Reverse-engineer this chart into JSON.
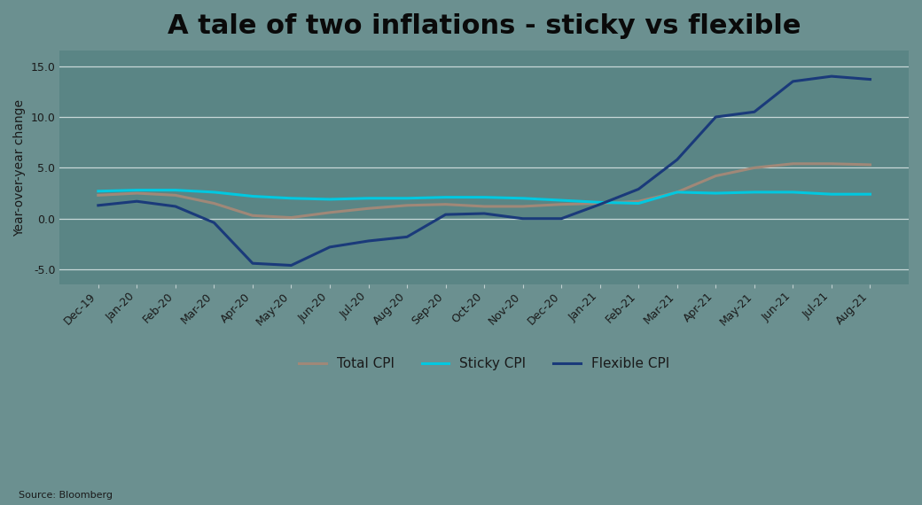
{
  "title": "A tale of two inflations - sticky vs flexible",
  "ylabel": "Year-over-year change",
  "source": "Source: Bloomberg",
  "figure_bg_color": "#6b9090",
  "plot_bg_color": "#5a8585",
  "grid_color": "#c8d8d8",
  "ylim": [
    -6.5,
    16.5
  ],
  "yticks": [
    -5.0,
    0.0,
    5.0,
    10.0,
    15.0
  ],
  "labels": [
    "Dec-19",
    "Jan-20",
    "Feb-20",
    "Mar-20",
    "Apr-20",
    "May-20",
    "Jun-20",
    "Jul-20",
    "Aug-20",
    "Sep-20",
    "Oct-20",
    "Nov-20",
    "Dec-20",
    "Jan-21",
    "Feb-21",
    "Mar-21",
    "Apr-21",
    "May-21",
    "Jun-21",
    "Jul-21",
    "Aug-21"
  ],
  "sticky_cpi": [
    2.7,
    2.8,
    2.8,
    2.6,
    2.2,
    2.0,
    1.9,
    2.0,
    2.0,
    2.1,
    2.1,
    2.0,
    1.8,
    1.6,
    1.5,
    2.6,
    2.5,
    2.6,
    2.6,
    2.4,
    2.4
  ],
  "flexible_cpi": [
    1.3,
    1.7,
    1.2,
    -0.4,
    -4.4,
    -4.6,
    -2.8,
    -2.2,
    -1.8,
    0.4,
    0.5,
    0.0,
    0.0,
    1.4,
    2.9,
    5.8,
    10.0,
    10.5,
    13.5,
    14.0,
    13.7
  ],
  "total_cpi": [
    2.3,
    2.5,
    2.3,
    1.5,
    0.3,
    0.1,
    0.6,
    1.0,
    1.3,
    1.4,
    1.2,
    1.2,
    1.4,
    1.5,
    1.7,
    2.6,
    4.2,
    5.0,
    5.4,
    5.4,
    5.3
  ],
  "sticky_color": "#00c8e0",
  "flexible_color": "#1a3a7a",
  "total_color": "#a08878",
  "line_width": 2.2,
  "title_fontsize": 22,
  "legend_fontsize": 11,
  "tick_fontsize": 9,
  "ylabel_fontsize": 10
}
